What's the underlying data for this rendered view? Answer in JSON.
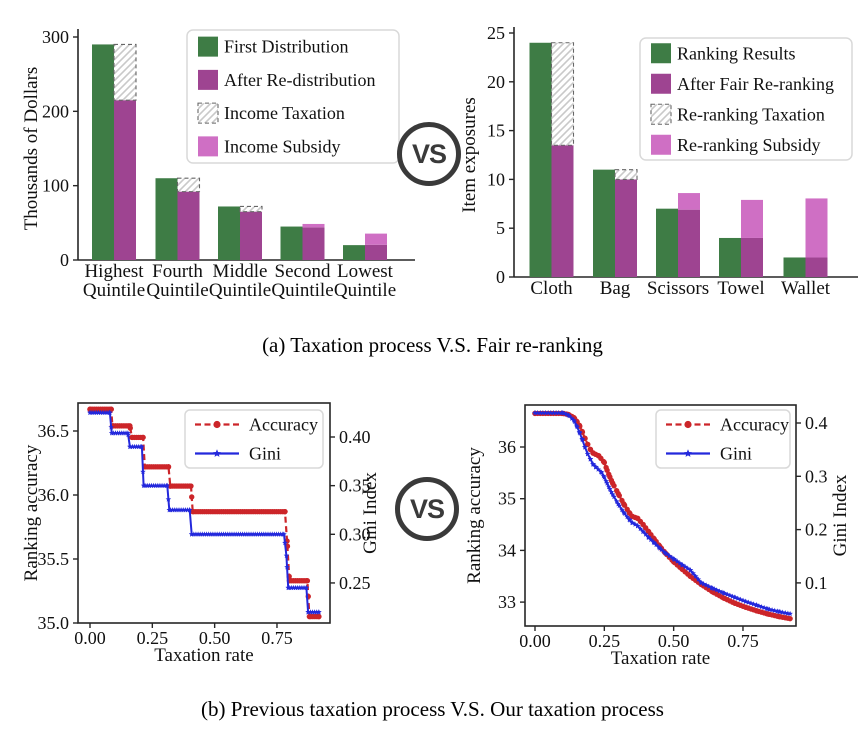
{
  "colors": {
    "green": "#3e7c45",
    "purple": "#9e4491",
    "pink": "#cf6fc4",
    "red": "#cc2529",
    "blue": "#2328dc",
    "spine": "#262626",
    "hatch_line": "#c9c9c9",
    "hatch_border": "#666666",
    "legend_border": "#d9d9d9"
  },
  "vs_badge": {
    "label": "VS"
  },
  "captions": {
    "a": "(a)  Taxation process V.S. Fair re-ranking",
    "b": "(b)  Previous taxation process V.S. Our taxation process"
  },
  "chart_data": [
    {
      "id": "income-taxation-bars",
      "type": "bar",
      "ylabel": "Thousands of Dollars",
      "ylim": [
        0,
        300
      ],
      "ytick_labels": [
        "0",
        "100",
        "200",
        "300"
      ],
      "categories": [
        [
          "Highest",
          "Quintile"
        ],
        [
          "Fourth",
          "Quintile"
        ],
        [
          "Middle",
          "Quintile"
        ],
        [
          "Second",
          "Quintile"
        ],
        [
          "Lowest",
          "Quintile"
        ]
      ],
      "series": [
        {
          "name": "First Distribution",
          "role": "base",
          "color_key": "green",
          "values": [
            290,
            110,
            72,
            45,
            20
          ]
        },
        {
          "name": "After Re-distribution",
          "role": "post",
          "color_key": "purple",
          "values": [
            215,
            92,
            65,
            44,
            20.5
          ]
        },
        {
          "name": "Income Taxation",
          "role": "tax_hatch",
          "segments": [
            [
              215,
              290
            ],
            [
              92,
              110
            ],
            [
              65,
              72
            ],
            null,
            null
          ]
        },
        {
          "name": "Income Subsidy",
          "role": "subsidy",
          "color_key": "pink",
          "segments": [
            null,
            null,
            null,
            [
              44,
              48.5
            ],
            [
              20.5,
              35.5
            ]
          ]
        }
      ],
      "legend": [
        "First Distribution",
        "After Re-distribution",
        "Income Taxation",
        "Income Subsidy"
      ],
      "legend_position": "upper right"
    },
    {
      "id": "item-exposure-bars",
      "type": "bar",
      "ylabel": "Item exposures",
      "ylim": [
        0,
        25
      ],
      "ytick_labels": [
        "0",
        "5",
        "10",
        "15",
        "20",
        "25"
      ],
      "categories": [
        [
          "Cloth"
        ],
        [
          "Bag"
        ],
        [
          "Scissors"
        ],
        [
          "Towel"
        ],
        [
          "Wallet"
        ]
      ],
      "series": [
        {
          "name": "Ranking Results",
          "role": "base",
          "color_key": "green",
          "values": [
            24,
            11,
            7,
            4,
            2
          ]
        },
        {
          "name": "After Fair Re-ranking",
          "role": "post",
          "color_key": "purple",
          "values": [
            13.5,
            10,
            6.9,
            4,
            2
          ]
        },
        {
          "name": "Re-ranking Taxation",
          "role": "tax_hatch",
          "segments": [
            [
              13.5,
              24
            ],
            [
              10,
              11
            ],
            null,
            null,
            null
          ]
        },
        {
          "name": "Re-ranking Subsidy",
          "role": "subsidy",
          "color_key": "pink",
          "segments": [
            null,
            null,
            [
              6.9,
              8.6
            ],
            [
              4,
              7.9
            ],
            [
              2,
              8.05
            ]
          ]
        }
      ],
      "legend": [
        "Ranking Results",
        "After Fair Re-ranking",
        "Re-ranking Taxation",
        "Re-ranking Subsidy"
      ],
      "legend_position": "upper right"
    },
    {
      "id": "previous-taxation-tradeoff",
      "type": "line",
      "xlabel": "Taxation rate",
      "ylabel_left": "Ranking accuracy",
      "ylabel_right": "Gini Index",
      "xtick_labels": [
        "0.00",
        "0.25",
        "0.50",
        "0.75"
      ],
      "ytick_labels_left": [
        "35.0",
        "35.5",
        "36.0",
        "36.5"
      ],
      "ytick_labels_right": [
        "0.25",
        "0.30",
        "0.35",
        "0.40"
      ],
      "series": [
        {
          "name": "Accuracy",
          "axis": "left",
          "color_key": "red",
          "line": "dashed",
          "marker": "circle",
          "points": [
            [
              0.0,
              36.67
            ],
            [
              0.085,
              36.67
            ],
            [
              0.09,
              36.54
            ],
            [
              0.16,
              36.54
            ],
            [
              0.168,
              36.45
            ],
            [
              0.213,
              36.45
            ],
            [
              0.22,
              36.22
            ],
            [
              0.315,
              36.22
            ],
            [
              0.322,
              36.07
            ],
            [
              0.405,
              36.07
            ],
            [
              0.412,
              35.87
            ],
            [
              0.782,
              35.87
            ],
            [
              0.792,
              35.6
            ],
            [
              0.8,
              35.33
            ],
            [
              0.872,
              35.33
            ],
            [
              0.88,
              35.05
            ],
            [
              0.918,
              35.05
            ]
          ]
        },
        {
          "name": "Gini",
          "axis": "right",
          "color_key": "blue",
          "line": "solid",
          "marker": "star",
          "points": [
            [
              0.0,
              0.425
            ],
            [
              0.08,
              0.425
            ],
            [
              0.087,
              0.404
            ],
            [
              0.152,
              0.404
            ],
            [
              0.16,
              0.39
            ],
            [
              0.208,
              0.39
            ],
            [
              0.215,
              0.35
            ],
            [
              0.31,
              0.35
            ],
            [
              0.318,
              0.325
            ],
            [
              0.4,
              0.325
            ],
            [
              0.408,
              0.3
            ],
            [
              0.778,
              0.3
            ],
            [
              0.788,
              0.278
            ],
            [
              0.795,
              0.245
            ],
            [
              0.868,
              0.245
            ],
            [
              0.875,
              0.22
            ],
            [
              0.918,
              0.22
            ]
          ]
        }
      ],
      "legend": [
        "Accuracy",
        "Gini"
      ],
      "legend_position": "upper center"
    },
    {
      "id": "our-taxation-tradeoff",
      "type": "line",
      "xlabel": "Taxation rate",
      "ylabel_left": "Ranking accuracy",
      "ylabel_right": "Gini Index",
      "xtick_labels": [
        "0.00",
        "0.25",
        "0.50",
        "0.75"
      ],
      "ytick_labels_left": [
        "33",
        "34",
        "35",
        "36"
      ],
      "ytick_labels_right": [
        "0.1",
        "0.2",
        "0.3",
        "0.4"
      ],
      "series": [
        {
          "name": "Accuracy",
          "axis": "left",
          "color_key": "red",
          "line": "dashed",
          "marker": "circle",
          "points": [
            [
              0.0,
              36.65
            ],
            [
              0.1,
              36.65
            ],
            [
              0.12,
              36.63
            ],
            [
              0.14,
              36.57
            ],
            [
              0.15,
              36.5
            ],
            [
              0.16,
              36.42
            ],
            [
              0.17,
              36.3
            ],
            [
              0.18,
              36.17
            ],
            [
              0.19,
              36.05
            ],
            [
              0.2,
              35.95
            ],
            [
              0.21,
              35.88
            ],
            [
              0.23,
              35.83
            ],
            [
              0.25,
              35.7
            ],
            [
              0.26,
              35.55
            ],
            [
              0.27,
              35.42
            ],
            [
              0.28,
              35.3
            ],
            [
              0.3,
              35.1
            ],
            [
              0.32,
              34.9
            ],
            [
              0.34,
              34.73
            ],
            [
              0.35,
              34.66
            ],
            [
              0.37,
              34.62
            ],
            [
              0.39,
              34.5
            ],
            [
              0.41,
              34.36
            ],
            [
              0.43,
              34.22
            ],
            [
              0.45,
              34.08
            ],
            [
              0.47,
              33.95
            ],
            [
              0.5,
              33.78
            ],
            [
              0.53,
              33.64
            ],
            [
              0.56,
              33.5
            ],
            [
              0.6,
              33.34
            ],
            [
              0.64,
              33.2
            ],
            [
              0.68,
              33.08
            ],
            [
              0.72,
              32.98
            ],
            [
              0.76,
              32.9
            ],
            [
              0.8,
              32.83
            ],
            [
              0.84,
              32.77
            ],
            [
              0.88,
              32.72
            ],
            [
              0.92,
              32.68
            ]
          ]
        },
        {
          "name": "Gini",
          "axis": "right",
          "color_key": "blue",
          "line": "solid",
          "marker": "star",
          "points": [
            [
              0.0,
              0.419
            ],
            [
              0.1,
              0.419
            ],
            [
              0.12,
              0.415
            ],
            [
              0.14,
              0.405
            ],
            [
              0.15,
              0.395
            ],
            [
              0.16,
              0.383
            ],
            [
              0.17,
              0.37
            ],
            [
              0.18,
              0.355
            ],
            [
              0.19,
              0.342
            ],
            [
              0.2,
              0.332
            ],
            [
              0.21,
              0.322
            ],
            [
              0.22,
              0.317
            ],
            [
              0.24,
              0.307
            ],
            [
              0.25,
              0.298
            ],
            [
              0.26,
              0.287
            ],
            [
              0.27,
              0.276
            ],
            [
              0.28,
              0.266
            ],
            [
              0.3,
              0.248
            ],
            [
              0.32,
              0.232
            ],
            [
              0.34,
              0.219
            ],
            [
              0.35,
              0.213
            ],
            [
              0.37,
              0.207
            ],
            [
              0.39,
              0.196
            ],
            [
              0.41,
              0.185
            ],
            [
              0.43,
              0.175
            ],
            [
              0.45,
              0.165
            ],
            [
              0.47,
              0.156
            ],
            [
              0.5,
              0.145
            ],
            [
              0.53,
              0.134
            ],
            [
              0.56,
              0.124
            ],
            [
              0.6,
              0.1
            ],
            [
              0.64,
              0.09
            ],
            [
              0.68,
              0.081
            ],
            [
              0.72,
              0.073
            ],
            [
              0.76,
              0.065
            ],
            [
              0.8,
              0.058
            ],
            [
              0.84,
              0.051
            ],
            [
              0.88,
              0.046
            ],
            [
              0.92,
              0.042
            ]
          ]
        }
      ],
      "legend": [
        "Accuracy",
        "Gini"
      ],
      "legend_position": "upper center"
    }
  ]
}
